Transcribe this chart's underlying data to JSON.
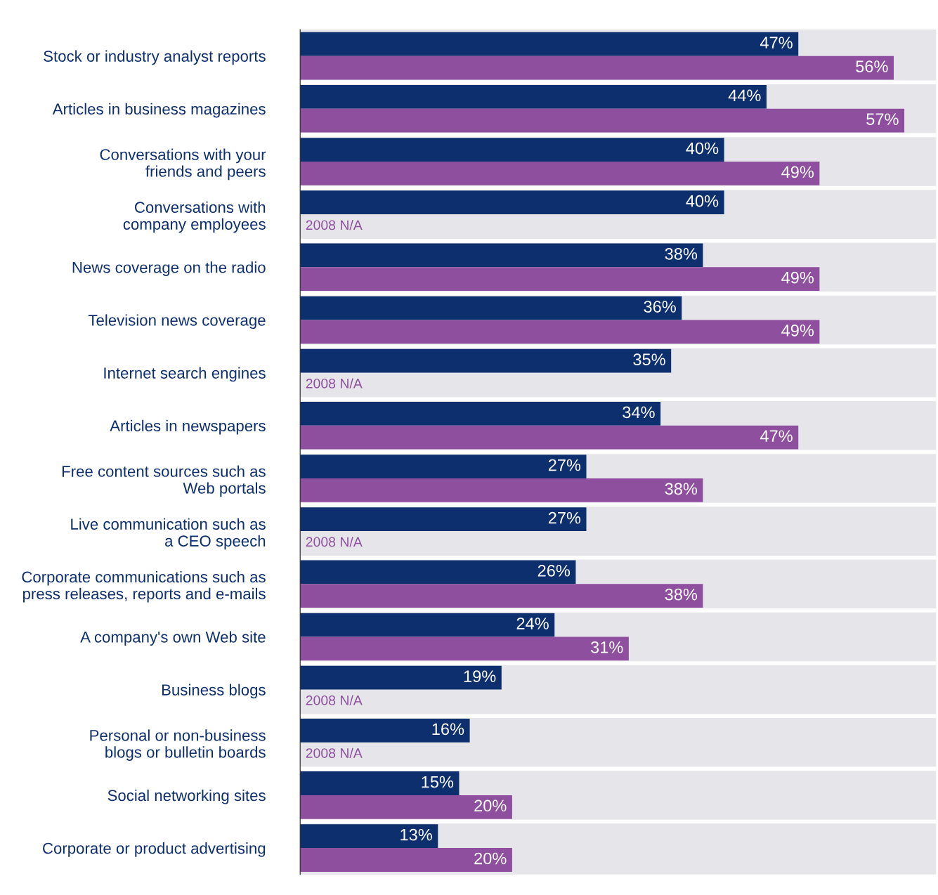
{
  "chart_data": {
    "type": "bar",
    "orientation": "horizontal",
    "categories": [
      "Stock or industry analyst reports",
      "Articles in business magazines",
      "Conversations with your\nfriends and peers",
      "Conversations with\ncompany employees",
      "News coverage on the radio",
      "Television news coverage",
      "Internet search engines",
      "Articles in newspapers",
      "Free content sources such as\nWeb portals",
      "Live communication such as\na CEO speech",
      "Corporate communications such as\npress releases, reports and e-mails",
      "A company's own Web site",
      "Business blogs",
      "Personal or non-business\nblogs or bulletin boards",
      "Social networking sites",
      "Corporate or product advertising"
    ],
    "series": [
      {
        "color": "#0d2f6e",
        "values": [
          47,
          44,
          40,
          40,
          38,
          36,
          35,
          34,
          27,
          27,
          26,
          24,
          19,
          16,
          15,
          13
        ],
        "value_labels": [
          "47%",
          "44%",
          "40%",
          "40%",
          "38%",
          "36%",
          "35%",
          "34%",
          "27%",
          "27%",
          "26%",
          "24%",
          "19%",
          "16%",
          "15%",
          "13%"
        ]
      },
      {
        "color": "#8e4f9e",
        "values": [
          56,
          57,
          49,
          null,
          49,
          49,
          null,
          47,
          38,
          null,
          38,
          31,
          null,
          null,
          20,
          20
        ],
        "value_labels": [
          "56%",
          "57%",
          "49%",
          "2008 N/A",
          "49%",
          "49%",
          "2008 N/A",
          "47%",
          "38%",
          "2008 N/A",
          "38%",
          "31%",
          "2008 N/A",
          "2008 N/A",
          "20%",
          "20%"
        ]
      }
    ],
    "xlim": [
      0,
      60
    ],
    "grid": false,
    "legend": false,
    "tick_labels": "y"
  }
}
